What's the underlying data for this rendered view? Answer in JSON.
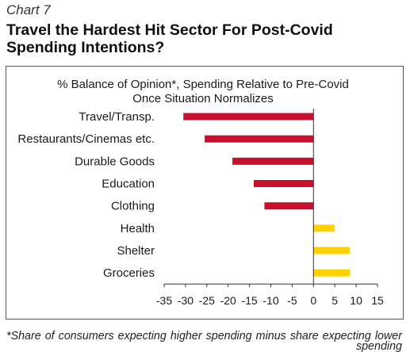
{
  "header": {
    "figure_label": "Chart 7"
  },
  "chart_data": {
    "type": "bar",
    "orientation": "horizontal",
    "title": "Travel the Hardest Hit Sector For Post-Covid Spending Intentions?",
    "subtitle": "% Balance of Opinion*, Spending Relative to Pre-Covid Once Situation Normalizes",
    "categories": [
      "Travel/Transp.",
      "Restaurants/Cinemas etc.",
      "Durable Goods",
      "Education",
      "Clothing",
      "Health",
      "Shelter",
      "Groceries"
    ],
    "values": [
      -30.5,
      -25.5,
      -19,
      -14,
      -11.5,
      5,
      8.5,
      8.5
    ],
    "xlim": [
      -35,
      15
    ],
    "x_ticks": [
      -35,
      -30,
      -25,
      -20,
      -15,
      -10,
      -5,
      0,
      5,
      10,
      15
    ],
    "grid": false,
    "colors": {
      "negative": "#C8102E",
      "positive": "#FFD200"
    },
    "footnote": "*Share of consumers expecting higher spending minus share expecting lower spending"
  }
}
